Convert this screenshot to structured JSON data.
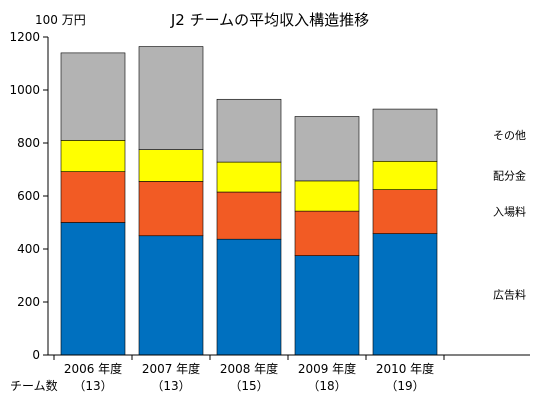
{
  "chart_data": {
    "type": "bar",
    "stacked": true,
    "title": "J2 チームの平均収入構造推移",
    "yunit": "100 万円",
    "ylim": [
      0,
      1200
    ],
    "yticks": [
      0,
      200,
      400,
      600,
      800,
      1000,
      1200
    ],
    "grid": false,
    "legend_placement": "right (labels beside last bar)",
    "categories": [
      "2006 年度",
      "2007 年度",
      "2008 年度",
      "2009 年度",
      "2010 年度"
    ],
    "team_count_label": "チーム数",
    "team_counts": [
      "（13）",
      "（13）",
      "（15）",
      "（18）",
      "（19）"
    ],
    "series": [
      {
        "name": "広告料",
        "color": "#0070bf",
        "values": [
          500,
          450,
          437,
          375,
          458
        ]
      },
      {
        "name": "入場料",
        "color": "#f25b24",
        "values": [
          192,
          205,
          178,
          168,
          166
        ]
      },
      {
        "name": "配分金",
        "color": "#ffff00",
        "values": [
          118,
          120,
          113,
          114,
          107
        ]
      },
      {
        "name": "その他",
        "color": "#b3b3b3",
        "values": [
          330,
          389,
          237,
          243,
          197
        ]
      }
    ]
  }
}
